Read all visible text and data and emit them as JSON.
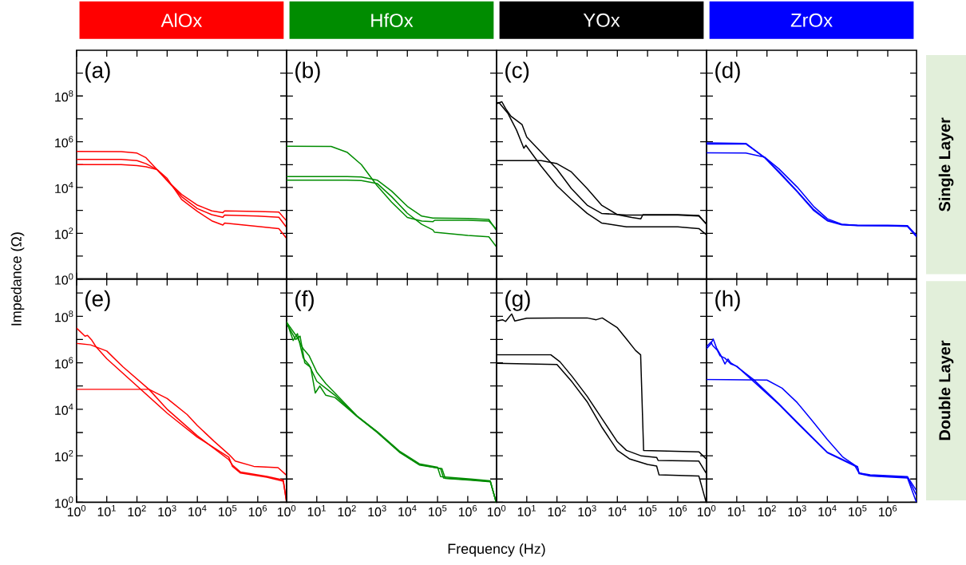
{
  "chart_data": [
    {
      "type": "line",
      "title": "AlOx",
      "annotations": [
        "(a)"
      ],
      "log": "xy",
      "xlim": [
        1,
        9000000.0
      ],
      "ylim": [
        1,
        10000000000.0
      ],
      "tick_labels": "y",
      "xticks": [
        {
          "value": 1,
          "label": null
        },
        {
          "value": 10,
          "label": null
        },
        {
          "value": 100,
          "label": null
        },
        {
          "value": 1000,
          "label": null
        },
        {
          "value": 10000,
          "label": null
        },
        {
          "value": 100000,
          "label": null
        },
        {
          "value": 1000000,
          "label": null
        }
      ],
      "yticks": [
        {
          "value": 1,
          "label": "10$^{0}$"
        },
        {
          "value": 10,
          "label": null
        },
        {
          "value": 100,
          "label": "10$^{2}$"
        },
        {
          "value": 1000,
          "label": null
        },
        {
          "value": 10000,
          "label": "10$^{4}$"
        },
        {
          "value": 100000,
          "label": null
        },
        {
          "value": 1000000,
          "label": "10$^{6}$"
        },
        {
          "value": 10000000,
          "label": null
        },
        {
          "value": 100000000,
          "label": "10$^{8}$"
        },
        {
          "value": 1000000000,
          "label": null
        }
      ],
      "series": [
        {
          "color": "#ff0000",
          "x": [
            1,
            30,
            100,
            200,
            470,
            1000,
            3000,
            10000.0,
            30000.0,
            70000.0,
            80000.0,
            1000000.0,
            5000000.0,
            9000000.0
          ],
          "values": [
            380000.0,
            370000.0,
            320000.0,
            200000.0,
            60000.0,
            20000.0,
            5000.0,
            1700.0,
            950,
            800,
            950,
            900,
            850,
            350
          ]
        },
        {
          "color": "#ff0000",
          "x": [
            1,
            30,
            100,
            200,
            470,
            1000,
            3000,
            10000.0,
            30000.0,
            70000.0,
            80000.0,
            1000000.0,
            5000000.0,
            9000000.0
          ],
          "values": [
            170000.0,
            170000.0,
            150000.0,
            110000.0,
            60000.0,
            20000.0,
            4000.0,
            1200.0,
            650,
            500,
            620,
            560,
            500,
            180
          ]
        },
        {
          "color": "#ff0000",
          "x": [
            1,
            30,
            100,
            200,
            470,
            1000,
            3000,
            10000.0,
            30000.0,
            70000.0,
            80000.0,
            1000000.0,
            5000000.0,
            9000000.0
          ],
          "values": [
            100000.0,
            100000.0,
            90000.0,
            80000.0,
            60000.0,
            25000.0,
            3000.0,
            900,
            350,
            230,
            280,
            200,
            160,
            60
          ]
        }
      ]
    },
    {
      "type": "line",
      "title": "HfOx",
      "annotations": [
        "(b)"
      ],
      "log": "xy",
      "xlim": [
        1,
        9000000.0
      ],
      "ylim": [
        1,
        10000000000.0
      ],
      "tick_labels": false,
      "xticks": [
        {
          "value": 1,
          "label": null
        },
        {
          "value": 10,
          "label": null
        },
        {
          "value": 100,
          "label": null
        },
        {
          "value": 1000,
          "label": null
        },
        {
          "value": 10000,
          "label": null
        },
        {
          "value": 100000,
          "label": null
        },
        {
          "value": 1000000,
          "label": null
        }
      ],
      "yticks": [
        {
          "value": 1,
          "label": null
        },
        {
          "value": 10,
          "label": null
        },
        {
          "value": 100,
          "label": null
        },
        {
          "value": 1000,
          "label": null
        },
        {
          "value": 10000,
          "label": null
        },
        {
          "value": 100000,
          "label": null
        },
        {
          "value": 1000000,
          "label": null
        },
        {
          "value": 10000000,
          "label": null
        },
        {
          "value": 100000000,
          "label": null
        },
        {
          "value": 1000000000,
          "label": null
        }
      ],
      "series": [
        {
          "color": "#008c00",
          "x": [
            1,
            30,
            100,
            300,
            1000,
            3000,
            10000.0,
            30000.0,
            70000.0,
            80000.0,
            1000000.0,
            5000000.0,
            9000000.0
          ],
          "values": [
            630000.0,
            620000.0,
            350000.0,
            100000.0,
            12000.0,
            2300.0,
            490,
            340,
            320,
            370,
            370,
            340,
            150
          ]
        },
        {
          "color": "#008c00",
          "x": [
            1,
            30,
            100,
            300,
            1000,
            3000,
            10000.0,
            30000.0,
            70000.0,
            80000.0,
            1000000.0,
            5000000.0,
            9000000.0
          ],
          "values": [
            30000.0,
            30000.0,
            30000.0,
            29000.0,
            21000.0,
            7000.0,
            1500.0,
            560,
            460,
            460,
            440,
            400,
            130
          ]
        },
        {
          "color": "#008c00",
          "x": [
            1,
            30,
            100,
            300,
            1000,
            3000,
            10000.0,
            30000.0,
            70000.0,
            80000.0,
            1000000.0,
            5000000.0,
            9000000.0
          ],
          "values": [
            21000.0,
            21000.0,
            21000.0,
            20000.0,
            15000.0,
            4000.0,
            750,
            245,
            140,
            110,
            80,
            70,
            25
          ]
        }
      ]
    },
    {
      "type": "line",
      "title": "YOx",
      "annotations": [
        "(c)"
      ],
      "log": "xy",
      "xlim": [
        1,
        9000000.0
      ],
      "ylim": [
        1,
        10000000000.0
      ],
      "tick_labels": false,
      "xticks": [
        {
          "value": 1,
          "label": null
        },
        {
          "value": 10,
          "label": null
        },
        {
          "value": 100,
          "label": null
        },
        {
          "value": 1000,
          "label": null
        },
        {
          "value": 10000,
          "label": null
        },
        {
          "value": 100000,
          "label": null
        },
        {
          "value": 1000000,
          "label": null
        }
      ],
      "yticks": [
        {
          "value": 1,
          "label": null
        },
        {
          "value": 10,
          "label": null
        },
        {
          "value": 100,
          "label": null
        },
        {
          "value": 1000,
          "label": null
        },
        {
          "value": 10000,
          "label": null
        },
        {
          "value": 100000,
          "label": null
        },
        {
          "value": 1000000,
          "label": null
        },
        {
          "value": 10000000,
          "label": null
        },
        {
          "value": 100000000,
          "label": null
        },
        {
          "value": 1000000000,
          "label": null
        }
      ],
      "series": [
        {
          "color": "#000000",
          "x": [
            1,
            30,
            100,
            300,
            1000,
            3000,
            10000.0,
            30000.0,
            60000.0,
            70000.0,
            1000000.0,
            5000000.0,
            9000000.0
          ],
          "values": [
            150000.0,
            150000.0,
            110000.0,
            48000.0,
            9000.0,
            1700.0,
            650,
            490,
            430,
            650,
            650,
            600,
            250
          ]
        },
        {
          "color": "#000000",
          "x": [
            1,
            1.5,
            2,
            3,
            7,
            10,
            30,
            100,
            300,
            1000,
            3000,
            20000.0,
            1000000.0,
            5000000.0,
            9000000.0
          ],
          "values": [
            46000000.0,
            56000000.0,
            28000000.0,
            13000000.0,
            5600000.0,
            1600000.0,
            350000.0,
            63000.0,
            9000.0,
            1700.0,
            740,
            620,
            620,
            560,
            250
          ]
        },
        {
          "color": "#000000",
          "x": [
            1,
            1.2,
            2.4,
            4.6,
            8,
            9.3,
            30,
            100,
            300,
            1000,
            3000,
            20000.0,
            1000000.0,
            5000000.0,
            9000000.0
          ],
          "values": [
            50000000.0,
            52000000.0,
            17000000.0,
            3200000.0,
            520000.0,
            700000.0,
            85000.0,
            12000.0,
            3000.0,
            740,
            280,
            190,
            190,
            160,
            85
          ]
        }
      ]
    },
    {
      "type": "line",
      "title": "ZrOx",
      "annotations": [
        "(d)"
      ],
      "y2label": "Single Layer",
      "log": "xy",
      "xlim": [
        1,
        9000000.0
      ],
      "ylim": [
        1,
        10000000000.0
      ],
      "tick_labels": false,
      "xticks": [
        {
          "value": 1,
          "label": null
        },
        {
          "value": 10,
          "label": null
        },
        {
          "value": 100,
          "label": null
        },
        {
          "value": 1000,
          "label": null
        },
        {
          "value": 10000,
          "label": null
        },
        {
          "value": 100000,
          "label": null
        },
        {
          "value": 1000000,
          "label": null
        }
      ],
      "yticks": [
        {
          "value": 1,
          "label": null
        },
        {
          "value": 10,
          "label": null
        },
        {
          "value": 100,
          "label": null
        },
        {
          "value": 1000,
          "label": null
        },
        {
          "value": 10000,
          "label": null
        },
        {
          "value": 100000,
          "label": null
        },
        {
          "value": 1000000,
          "label": null
        },
        {
          "value": 10000000,
          "label": null
        },
        {
          "value": 100000000,
          "label": null
        },
        {
          "value": 1000000000,
          "label": null
        }
      ],
      "series": [
        {
          "color": "#0000ff",
          "x": [
            1,
            20,
            85,
            250,
            1000,
            3500,
            10000.0,
            30000.0,
            100000.0,
            1000000.0,
            4500000.0,
            9000000.0
          ],
          "values": [
            900000.0,
            850000.0,
            200000.0,
            50000.0,
            7000.0,
            1100.0,
            370,
            245,
            225,
            225,
            215,
            80
          ]
        },
        {
          "color": "#0000ff",
          "x": [
            1,
            20,
            85,
            250,
            1000,
            3500,
            10000.0,
            30000.0,
            100000.0,
            1000000.0,
            4500000.0,
            9000000.0
          ],
          "values": [
            800000.0,
            800000.0,
            200000.0,
            45000.0,
            6500.0,
            1000.0,
            350,
            235,
            215,
            210,
            200,
            70
          ]
        },
        {
          "color": "#0000ff",
          "x": [
            1,
            20,
            85,
            250,
            1000,
            3500,
            10000.0,
            30000.0,
            100000.0,
            1000000.0,
            4500000.0,
            9000000.0
          ],
          "values": [
            330000.0,
            320000.0,
            210000.0,
            65000.0,
            10500.0,
            1500.0,
            430,
            250,
            220,
            215,
            205,
            75
          ]
        }
      ]
    },
    {
      "type": "line",
      "annotations": [
        "(e)"
      ],
      "ylabel": "Impedance (Ω)",
      "log": "xy",
      "xlim": [
        1,
        9000000.0
      ],
      "ylim": [
        1,
        4000000000.0
      ],
      "xticks": [
        {
          "value": 1,
          "label": "10$^{0}$"
        },
        {
          "value": 10,
          "label": "10$^{1}$"
        },
        {
          "value": 100,
          "label": "10$^{2}$"
        },
        {
          "value": 1000,
          "label": "10$^{3}$"
        },
        {
          "value": 10000,
          "label": "10$^{4}$"
        },
        {
          "value": 100000,
          "label": "10$^{5}$"
        },
        {
          "value": 1000000,
          "label": "10$^{6}$"
        }
      ],
      "yticks": [
        {
          "value": 1,
          "label": "10$^{0}$"
        },
        {
          "value": 10,
          "label": null
        },
        {
          "value": 100,
          "label": "10$^{2}$"
        },
        {
          "value": 1000,
          "label": null
        },
        {
          "value": 10000,
          "label": "10$^{4}$"
        },
        {
          "value": 100000,
          "label": null
        },
        {
          "value": 1000000,
          "label": "10$^{6}$"
        },
        {
          "value": 10000000,
          "label": null
        },
        {
          "value": 100000000,
          "label": "10$^{8}$"
        },
        {
          "value": 1000000000,
          "label": null
        }
      ],
      "series": [
        {
          "color": "#ff0000",
          "x": [
            1,
            1.9,
            2.3,
            3.2,
            4.4,
            10,
            1000,
            10000.0,
            110000.0,
            145000.0,
            270000.0,
            2000000.0,
            7000000.0,
            9000000.0
          ],
          "values": [
            31000000.0,
            14000000.0,
            15000000.0,
            9300000.0,
            4900000.0,
            1500000.0,
            6800.0,
            630,
            87,
            35,
            18,
            12,
            8.1,
            1
          ]
        },
        {
          "color": "#ff0000",
          "x": [
            1,
            2.9,
            10,
            34,
            250,
            1000,
            10000.0,
            110000.0,
            145000.0,
            270000.0,
            2000000.0,
            7000000.0,
            9000000.0
          ],
          "values": [
            6800000.0,
            5900000.0,
            3200000.0,
            680000.0,
            72000.0,
            10000.0,
            720,
            68,
            40,
            20,
            13,
            9,
            1
          ]
        },
        {
          "color": "#ff0000",
          "x": [
            1,
            250,
            1000,
            4600,
            10000.0,
            35000.0,
            110000.0,
            180000.0,
            740000.0,
            4700000.0,
            8700000.0
          ],
          "values": [
            72000.0,
            72000.0,
            29000.0,
            5900.0,
            2000.0,
            430,
            115,
            59,
            35,
            31,
            15
          ]
        }
      ]
    },
    {
      "type": "line",
      "annotations": [
        "(f)"
      ],
      "xlabel": "Frequency (Hz)",
      "log": "xy",
      "xlim": [
        1,
        9000000.0
      ],
      "ylim": [
        1,
        4000000000.0
      ],
      "tick_labels": "x",
      "xticks": [
        {
          "value": 1,
          "label": "10$^{0}$"
        },
        {
          "value": 10,
          "label": "10$^{1}$"
        },
        {
          "value": 100,
          "label": "10$^{2}$"
        },
        {
          "value": 1000,
          "label": "10$^{3}$"
        },
        {
          "value": 10000,
          "label": "10$^{4}$"
        },
        {
          "value": 100000,
          "label": "10$^{5}$"
        },
        {
          "value": 1000000,
          "label": "10$^{6}$"
        }
      ],
      "yticks": [
        {
          "value": 1,
          "label": null
        },
        {
          "value": 10,
          "label": null
        },
        {
          "value": 100,
          "label": null
        },
        {
          "value": 1000,
          "label": null
        },
        {
          "value": 10000,
          "label": null
        },
        {
          "value": 100000,
          "label": null
        },
        {
          "value": 1000000,
          "label": null
        },
        {
          "value": 10000000,
          "label": null
        },
        {
          "value": 100000000,
          "label": null
        },
        {
          "value": 1000000000,
          "label": null
        }
      ],
      "series": [
        {
          "color": "#008c00",
          "x": [
            1,
            1.66,
            2.29,
            3.55,
            5.6,
            10,
            20,
            40,
            214,
            1000,
            5500,
            25000.0,
            126000.0,
            158000.0,
            1260000.0,
            5600000.0,
            8700000.0
          ],
          "values": [
            60000000.0,
            9100000.0,
            18000000.0,
            1600000.0,
            790000.0,
            160000.0,
            79000.0,
            40000.0,
            5000.0,
            1070.0,
            148,
            42,
            28,
            11,
            9.3,
            7.9,
            1
          ]
        },
        {
          "color": "#008c00",
          "x": [
            1,
            2,
            2.8,
            4,
            6.3,
            8.9,
            12.6,
            20,
            40,
            214,
            1000,
            5500,
            25000.0,
            140000.0,
            180000.0,
            1260000.0,
            5600000.0,
            8700000.0
          ],
          "values": [
            50000000.0,
            10000000.0,
            14000000.0,
            1000000.0,
            630000.0,
            50000.0,
            100000.0,
            40000.0,
            32000.0,
            5000.0,
            1000.0,
            141,
            40,
            28,
            10.7,
            8.9,
            7.6,
            1
          ]
        },
        {
          "color": "#008c00",
          "x": [
            1,
            2.24,
            3.55,
            5.6,
            10,
            20,
            40,
            214,
            1000,
            5500,
            25000.0,
            100000.0,
            126000.0,
            1260000.0,
            5600000.0,
            8700000.0
          ],
          "values": [
            56000000.0,
            12600000.0,
            4000000.0,
            2000000.0,
            400000.0,
            126000.0,
            50000.0,
            5200.0,
            1100.0,
            158,
            45,
            32,
            12.6,
            10,
            8.3,
            1
          ]
        }
      ]
    },
    {
      "type": "line",
      "annotations": [
        "(g)"
      ],
      "log": "xy",
      "xlim": [
        1,
        9000000.0
      ],
      "ylim": [
        1,
        4000000000.0
      ],
      "tick_labels": "x",
      "xticks": [
        {
          "value": 1,
          "label": "10$^{0}$"
        },
        {
          "value": 10,
          "label": "10$^{1}$"
        },
        {
          "value": 100,
          "label": "10$^{2}$"
        },
        {
          "value": 1000,
          "label": "10$^{3}$"
        },
        {
          "value": 10000,
          "label": "10$^{4}$"
        },
        {
          "value": 100000,
          "label": "10$^{5}$"
        },
        {
          "value": 1000000,
          "label": "10$^{6}$"
        }
      ],
      "yticks": [
        {
          "value": 1,
          "label": null
        },
        {
          "value": 10,
          "label": null
        },
        {
          "value": 100,
          "label": null
        },
        {
          "value": 1000,
          "label": null
        },
        {
          "value": 10000,
          "label": null
        },
        {
          "value": 100000,
          "label": null
        },
        {
          "value": 1000000,
          "label": null
        },
        {
          "value": 10000000,
          "label": null
        },
        {
          "value": 100000000,
          "label": null
        },
        {
          "value": 1000000000,
          "label": null
        }
      ],
      "series": [
        {
          "color": "#000000",
          "x": [
            1,
            1.58,
            2,
            3.16,
            4,
            10,
            100,
            1000,
            2000,
            3160,
            10000.0,
            20000.0,
            40000.0,
            59000.0,
            74000.0,
            5000000.0,
            8700000.0
          ],
          "values": [
            63000000.0,
            71000000.0,
            60000000.0,
            126000000.0,
            63000000.0,
            83000000.0,
            85000000.0,
            85000000.0,
            71000000.0,
            85000000.0,
            32000000.0,
            10500000.0,
            3400000.0,
            2200000.0,
            170,
            148,
            74
          ]
        },
        {
          "color": "#000000",
          "x": [
            1,
            63,
            126,
            316,
            1000,
            3160,
            10000.0,
            20000.0,
            63000.0,
            200000.0,
            224000.0,
            5000000.0,
            8700000.0
          ],
          "values": [
            2200000.0,
            2200000.0,
            1100000.0,
            260000.0,
            36000.0,
            3800.0,
            400,
            170,
            98,
            85,
            63,
            59,
            18
          ]
        },
        {
          "color": "#000000",
          "x": [
            1,
            100,
            316,
            1000,
            3160,
            10000.0,
            25000.0,
            100000.0,
            200000.0,
            240000.0,
            5000000.0,
            8700000.0
          ],
          "values": [
            950000.0,
            850000.0,
            150000.0,
            21000.0,
            1600.0,
            170,
            74,
            42,
            36,
            15,
            13.5,
            1
          ]
        }
      ]
    },
    {
      "type": "line",
      "annotations": [
        "(h)"
      ],
      "y2label": "Double Layer",
      "log": "xy",
      "xlim": [
        1,
        9000000.0
      ],
      "ylim": [
        1,
        4000000000.0
      ],
      "tick_labels": "x",
      "xticks": [
        {
          "value": 1,
          "label": "10$^{0}$"
        },
        {
          "value": 10,
          "label": "10$^{1}$"
        },
        {
          "value": 100,
          "label": "10$^{2}$"
        },
        {
          "value": 1000,
          "label": "10$^{3}$"
        },
        {
          "value": 10000,
          "label": "10$^{4}$"
        },
        {
          "value": 100000,
          "label": "10$^{5}$"
        },
        {
          "value": 1000000,
          "label": "10$^{6}$"
        }
      ],
      "yticks": [
        {
          "value": 1,
          "label": null
        },
        {
          "value": 10,
          "label": null
        },
        {
          "value": 100,
          "label": null
        },
        {
          "value": 1000,
          "label": null
        },
        {
          "value": 10000,
          "label": null
        },
        {
          "value": 100000,
          "label": null
        },
        {
          "value": 1000000,
          "label": null
        },
        {
          "value": 10000000,
          "label": null
        },
        {
          "value": 100000000,
          "label": null
        },
        {
          "value": 1000000000,
          "label": null
        }
      ],
      "series": [
        {
          "color": "#0000ff",
          "x": [
            1,
            1.38,
            1.66,
            2.14,
            2.95,
            4.07,
            5.13,
            6.3,
            10,
            36,
            251,
            1000,
            10000.0,
            100000.0,
            112000.0,
            263000.0,
            4500000.0,
            8900000.0
          ],
          "values": [
            4000000.0,
            6500000.0,
            10500000.0,
            4300000.0,
            2100000.0,
            890000.0,
            1450000.0,
            1000000.0,
            680000.0,
            190000.0,
            17000.0,
            2800.0,
            141,
            34,
            17,
            13.5,
            11,
            1
          ]
        },
        {
          "color": "#0000ff",
          "x": [
            1,
            1.41,
            1.58,
            2.24,
            2.8,
            4,
            6.3,
            10,
            251,
            1000,
            10000.0,
            100000.0,
            112000.0,
            263000.0,
            4500000.0,
            8900000.0
          ],
          "values": [
            5000000.0,
            7900000.0,
            5600000.0,
            3500000.0,
            2000000.0,
            1600000.0,
            890000.0,
            710000.0,
            16000.0,
            2600.0,
            135,
            32,
            18,
            14,
            12,
            2
          ]
        },
        {
          "color": "#0000ff",
          "x": [
            1,
            100,
            316,
            1000,
            3160,
            10000.0,
            31600.0,
            79000.0,
            112000.0,
            263000.0,
            4500000.0,
            8900000.0
          ],
          "values": [
            190000.0,
            180000.0,
            81000.0,
            19500.0,
            3200.0,
            500,
            91,
            40,
            18,
            15,
            12.6,
            3.2
          ]
        }
      ]
    }
  ]
}
